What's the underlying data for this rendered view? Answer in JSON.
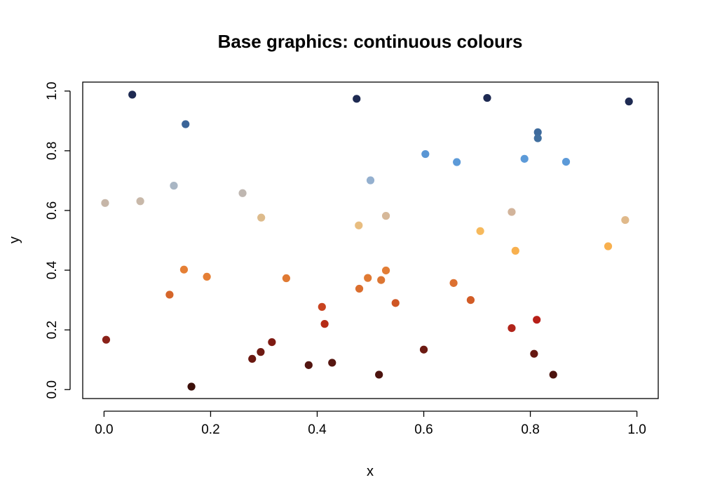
{
  "chart_data": {
    "type": "scatter",
    "title": "Base graphics: continuous colours",
    "xlabel": "x",
    "ylabel": "y",
    "xlim": [
      -0.04,
      1.04
    ],
    "ylim": [
      -0.03,
      1.03
    ],
    "x_ticks": [
      0.0,
      0.2,
      0.4,
      0.6,
      0.8,
      1.0
    ],
    "y_ticks": [
      0.0,
      0.2,
      0.4,
      0.6,
      0.8,
      1.0
    ],
    "x_tick_labels": [
      "0.0",
      "0.2",
      "0.4",
      "0.6",
      "0.8",
      "1.0"
    ],
    "y_tick_labels": [
      "0.0",
      "0.2",
      "0.4",
      "0.6",
      "0.8",
      "1.0"
    ],
    "grid": false,
    "points": [
      {
        "x": 0.053,
        "y": 0.988,
        "color": "#1e2a52"
      },
      {
        "x": 0.474,
        "y": 0.974,
        "color": "#1e2a52"
      },
      {
        "x": 0.719,
        "y": 0.977,
        "color": "#1e2a52"
      },
      {
        "x": 0.985,
        "y": 0.965,
        "color": "#1e2a52"
      },
      {
        "x": 0.153,
        "y": 0.889,
        "color": "#3a6498"
      },
      {
        "x": 0.814,
        "y": 0.862,
        "color": "#3e6a9c"
      },
      {
        "x": 0.814,
        "y": 0.842,
        "color": "#416f9f"
      },
      {
        "x": 0.603,
        "y": 0.789,
        "color": "#5a96d4"
      },
      {
        "x": 0.662,
        "y": 0.762,
        "color": "#5c9ad8"
      },
      {
        "x": 0.789,
        "y": 0.773,
        "color": "#5c9ad8"
      },
      {
        "x": 0.867,
        "y": 0.763,
        "color": "#5c9ad8"
      },
      {
        "x": 0.131,
        "y": 0.683,
        "color": "#a9b6c4"
      },
      {
        "x": 0.5,
        "y": 0.701,
        "color": "#94b0cf"
      },
      {
        "x": 0.26,
        "y": 0.658,
        "color": "#bfb7b1"
      },
      {
        "x": 0.002,
        "y": 0.625,
        "color": "#c6b6a8"
      },
      {
        "x": 0.068,
        "y": 0.631,
        "color": "#c8b8a9"
      },
      {
        "x": 0.765,
        "y": 0.595,
        "color": "#d2b49b"
      },
      {
        "x": 0.295,
        "y": 0.576,
        "color": "#ddbb8c"
      },
      {
        "x": 0.529,
        "y": 0.582,
        "color": "#d6b899"
      },
      {
        "x": 0.478,
        "y": 0.55,
        "color": "#e8bd80"
      },
      {
        "x": 0.978,
        "y": 0.568,
        "color": "#e0b98a"
      },
      {
        "x": 0.706,
        "y": 0.531,
        "color": "#f6b95c"
      },
      {
        "x": 0.772,
        "y": 0.465,
        "color": "#f8b04e"
      },
      {
        "x": 0.946,
        "y": 0.48,
        "color": "#f8b04e"
      },
      {
        "x": 0.15,
        "y": 0.402,
        "color": "#e57f35"
      },
      {
        "x": 0.193,
        "y": 0.378,
        "color": "#e57f35"
      },
      {
        "x": 0.342,
        "y": 0.373,
        "color": "#e07a33"
      },
      {
        "x": 0.529,
        "y": 0.399,
        "color": "#e27d35"
      },
      {
        "x": 0.495,
        "y": 0.374,
        "color": "#e07a33"
      },
      {
        "x": 0.52,
        "y": 0.367,
        "color": "#dc7633"
      },
      {
        "x": 0.479,
        "y": 0.338,
        "color": "#db6e2e"
      },
      {
        "x": 0.656,
        "y": 0.357,
        "color": "#dc7030"
      },
      {
        "x": 0.123,
        "y": 0.318,
        "color": "#d5662a"
      },
      {
        "x": 0.547,
        "y": 0.29,
        "color": "#cf5624"
      },
      {
        "x": 0.688,
        "y": 0.3,
        "color": "#d25c26"
      },
      {
        "x": 0.409,
        "y": 0.277,
        "color": "#c84320"
      },
      {
        "x": 0.414,
        "y": 0.22,
        "color": "#b52b16"
      },
      {
        "x": 0.765,
        "y": 0.206,
        "color": "#b1241a"
      },
      {
        "x": 0.812,
        "y": 0.234,
        "color": "#b71f18"
      },
      {
        "x": 0.004,
        "y": 0.167,
        "color": "#8a2118"
      },
      {
        "x": 0.315,
        "y": 0.159,
        "color": "#7e1a12"
      },
      {
        "x": 0.294,
        "y": 0.126,
        "color": "#6e1a12"
      },
      {
        "x": 0.278,
        "y": 0.103,
        "color": "#6a1810"
      },
      {
        "x": 0.6,
        "y": 0.134,
        "color": "#6c1a12"
      },
      {
        "x": 0.807,
        "y": 0.12,
        "color": "#661811"
      },
      {
        "x": 0.384,
        "y": 0.082,
        "color": "#531510"
      },
      {
        "x": 0.428,
        "y": 0.09,
        "color": "#561610"
      },
      {
        "x": 0.516,
        "y": 0.05,
        "color": "#4c130e"
      },
      {
        "x": 0.843,
        "y": 0.05,
        "color": "#4c130e"
      },
      {
        "x": 0.164,
        "y": 0.01,
        "color": "#3c0f0a"
      }
    ]
  }
}
